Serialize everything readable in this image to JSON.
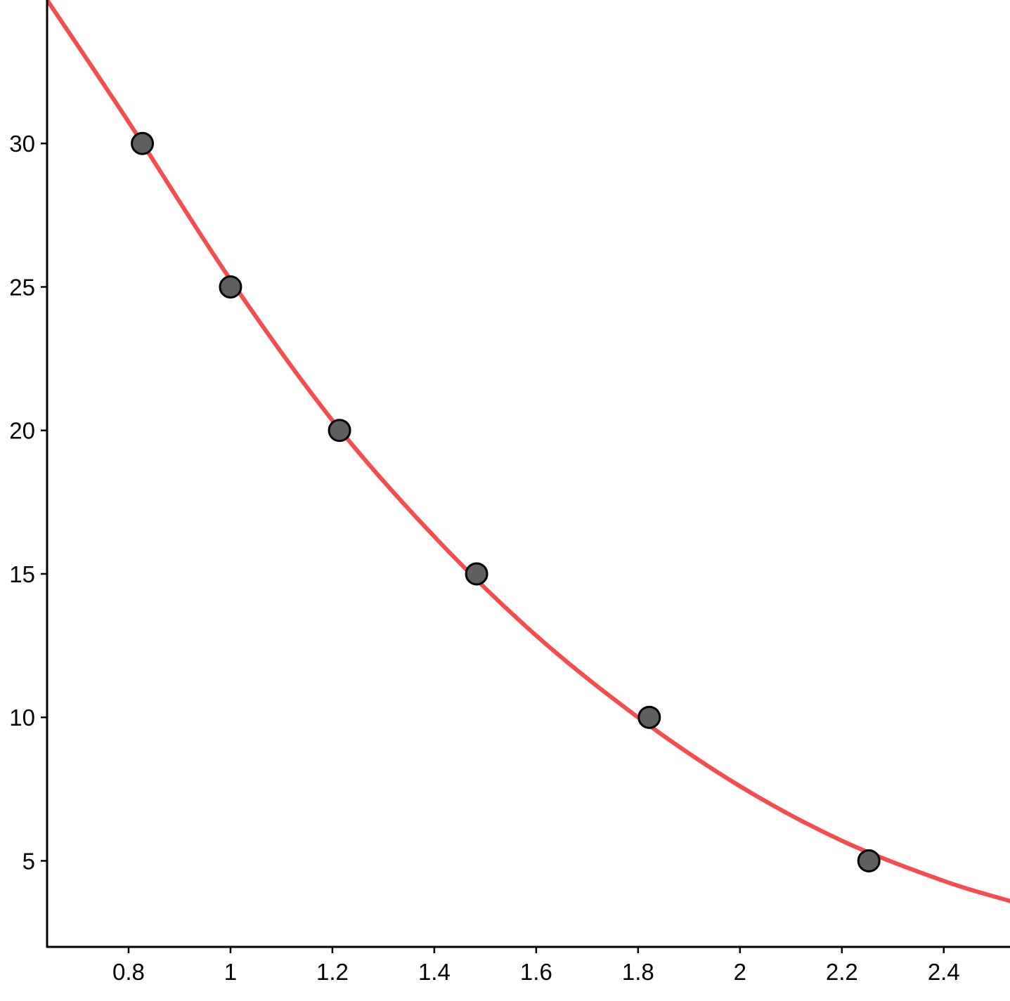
{
  "chart_data": {
    "type": "scatter",
    "title": "",
    "xlabel": "",
    "ylabel": "",
    "xlim": [
      0.64,
      2.53
    ],
    "ylim": [
      2.0,
      35.0
    ],
    "grid": false,
    "legend": "none",
    "x_ticks": [
      {
        "value": 0.8,
        "label": "0.8"
      },
      {
        "value": 1.0,
        "label": "1"
      },
      {
        "value": 1.2,
        "label": "1.2"
      },
      {
        "value": 1.4,
        "label": "1.4"
      },
      {
        "value": 1.6,
        "label": "1.6"
      },
      {
        "value": 1.8,
        "label": "1.8"
      },
      {
        "value": 2.0,
        "label": "2"
      },
      {
        "value": 2.2,
        "label": "2.2"
      },
      {
        "value": 2.4,
        "label": "2.4"
      }
    ],
    "y_ticks": [
      {
        "value": 5,
        "label": "5"
      },
      {
        "value": 10,
        "label": "10"
      },
      {
        "value": 15,
        "label": "15"
      },
      {
        "value": 20,
        "label": "20"
      },
      {
        "value": 25,
        "label": "25"
      },
      {
        "value": 30,
        "label": "30"
      }
    ],
    "series": [
      {
        "kind": "points",
        "color": "#5f5f5f",
        "edge_color": "#000000",
        "points": [
          {
            "x": 0.827,
            "y": 30
          },
          {
            "x": 1.0,
            "y": 25
          },
          {
            "x": 1.214,
            "y": 20
          },
          {
            "x": 1.483,
            "y": 15
          },
          {
            "x": 1.822,
            "y": 10
          },
          {
            "x": 2.253,
            "y": 5
          }
        ]
      },
      {
        "kind": "fit-curve",
        "color": "#f64c4c",
        "points": [
          {
            "x": 0.64,
            "y": 35.0
          },
          {
            "x": 0.8,
            "y": 30.75
          },
          {
            "x": 1.0,
            "y": 25.25
          },
          {
            "x": 1.2,
            "y": 20.35
          },
          {
            "x": 1.4,
            "y": 16.3
          },
          {
            "x": 1.6,
            "y": 12.85
          },
          {
            "x": 1.8,
            "y": 10.0
          },
          {
            "x": 2.0,
            "y": 7.6
          },
          {
            "x": 2.2,
            "y": 5.7
          },
          {
            "x": 2.4,
            "y": 4.3
          },
          {
            "x": 2.53,
            "y": 3.6
          }
        ]
      }
    ]
  }
}
